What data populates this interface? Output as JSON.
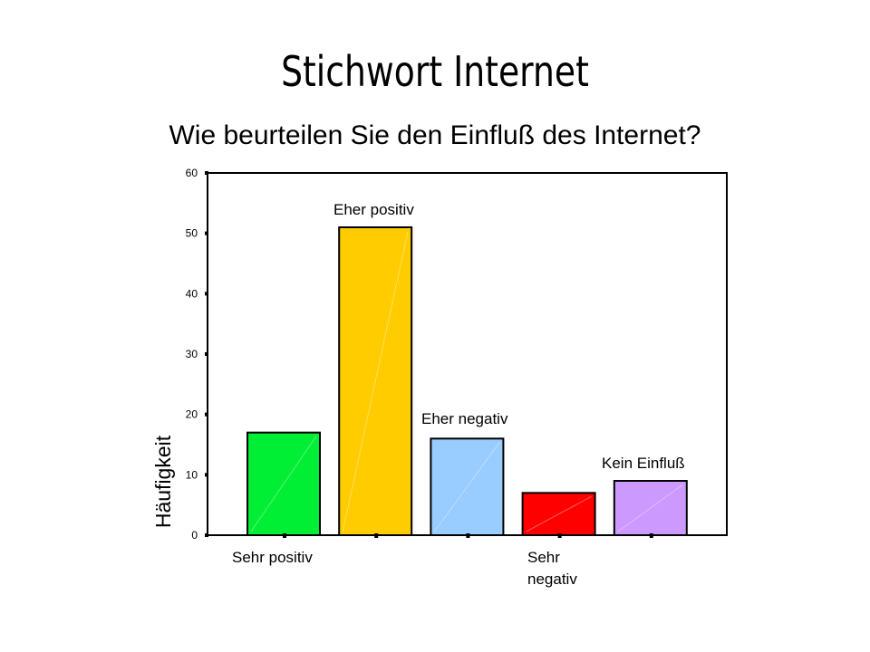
{
  "page": {
    "title": "Stichwort Internet",
    "subtitle": "Wie beurteilen Sie den Einfluß des Internet?"
  },
  "chart_data": {
    "type": "bar",
    "ylabel": "Häufigkeit",
    "ylim": [
      0,
      60
    ],
    "yticks": [
      0,
      10,
      20,
      30,
      40,
      50,
      60
    ],
    "categories": [
      "Sehr positiv",
      "Eher positiv",
      "Eher negativ",
      "Sehr negativ",
      "Kein Einfluß"
    ],
    "values": [
      17,
      51,
      16,
      7,
      9
    ],
    "colors": [
      "#00ee33",
      "#ffcc00",
      "#99ccff",
      "#ff0000",
      "#cc99ff"
    ],
    "grid": false,
    "legend": "none"
  }
}
